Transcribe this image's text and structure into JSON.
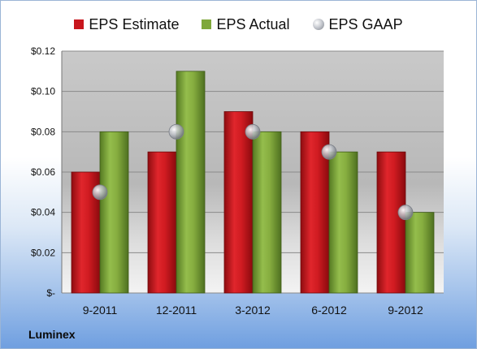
{
  "company": "Luminex",
  "colors": {
    "estimate": "#c8161d",
    "actual": "#7fa83a",
    "gaap": "#b9bcc2"
  },
  "chart_data": {
    "type": "bar",
    "categories": [
      "9-2011",
      "12-2011",
      "3-2012",
      "6-2012",
      "9-2012"
    ],
    "series": [
      {
        "name": "EPS Estimate",
        "values": [
          0.06,
          0.07,
          0.09,
          0.08,
          0.07
        ]
      },
      {
        "name": "EPS Actual",
        "values": [
          0.08,
          0.11,
          0.08,
          0.07,
          0.04
        ]
      },
      {
        "name": "EPS GAAP",
        "values": [
          0.05,
          0.08,
          0.08,
          0.07,
          0.04
        ]
      }
    ],
    "ylim": [
      0,
      0.12
    ],
    "yticks": [
      0,
      0.02,
      0.04,
      0.06,
      0.08,
      0.1,
      0.12
    ],
    "ytick_labels": [
      "$-",
      "$0.02",
      "$0.04",
      "$0.06",
      "$0.08",
      "$0.10",
      "$0.12"
    ],
    "grid": true,
    "legend_position": "top"
  }
}
